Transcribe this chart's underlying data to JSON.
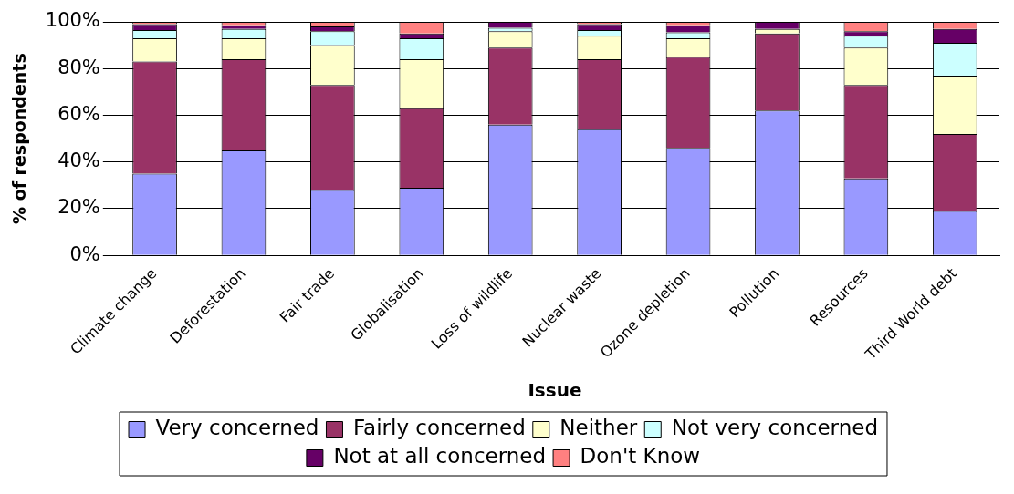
{
  "chart_data": {
    "type": "bar",
    "stacked": true,
    "xlabel": "Issue",
    "ylabel": "% of respondents",
    "categories": [
      "Climate change",
      "Deforestation",
      "Fair trade",
      "Globalisation",
      "Loss of wildlife",
      "Nuclear waste",
      "Ozone depletion",
      "Pollution",
      "Resources",
      "Third World debt"
    ],
    "series": [
      {
        "name": "Very concerned",
        "color": "#9999ff",
        "values": [
          35,
          45,
          28,
          29,
          56,
          54,
          46,
          62,
          33,
          19
        ]
      },
      {
        "name": "Fairly concerned",
        "color": "#993366",
        "values": [
          48,
          39,
          45,
          34,
          33,
          30,
          39,
          33,
          40,
          33
        ]
      },
      {
        "name": "Neither",
        "color": "#ffffcc",
        "values": [
          10,
          9,
          17,
          21,
          7,
          10,
          8,
          2,
          16,
          25
        ]
      },
      {
        "name": "Not very concerned",
        "color": "#ccffff",
        "values": [
          3.5,
          4,
          6,
          9,
          1.5,
          2.5,
          2.5,
          0,
          5,
          14
        ]
      },
      {
        "name": "Not at all concerned",
        "color": "#660066",
        "values": [
          2.5,
          1.5,
          2,
          2,
          2.5,
          2.5,
          3,
          3,
          2,
          6
        ]
      },
      {
        "name": "Don't Know",
        "color": "#ff8080",
        "values": [
          1,
          1.5,
          2,
          5,
          0,
          1,
          1.5,
          0,
          4,
          3
        ]
      }
    ],
    "ylim": [
      0,
      100
    ],
    "yticks": [
      {
        "value": 0,
        "label": "0%"
      },
      {
        "value": 20,
        "label": "20%"
      },
      {
        "value": 40,
        "label": "40%"
      },
      {
        "value": 60,
        "label": "60%"
      },
      {
        "value": 80,
        "label": "80%"
      },
      {
        "value": 100,
        "label": "100%"
      }
    ],
    "grid": "y",
    "legend": "bottom"
  }
}
